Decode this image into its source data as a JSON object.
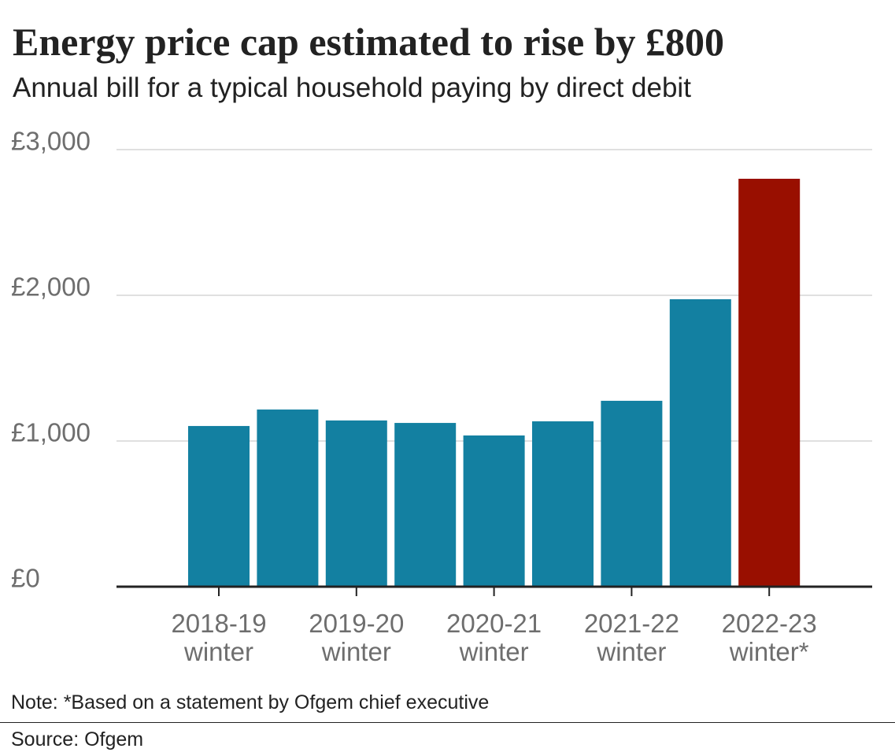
{
  "chart_data": {
    "type": "bar",
    "title": "Energy price cap estimated to rise by £800",
    "subtitle": "Annual bill for a typical household paying by direct debit",
    "categories": [
      "2018-19 winter",
      null,
      "2019-20 winter",
      null,
      "2020-21 winter",
      null,
      "2021-22 winter",
      null,
      "2022-23 winter*"
    ],
    "values": [
      1103,
      1216,
      1141,
      1124,
      1038,
      1135,
      1276,
      1973,
      2800
    ],
    "colors": [
      "#1380a1",
      "#1380a1",
      "#1380a1",
      "#1380a1",
      "#1380a1",
      "#1380a1",
      "#1380a1",
      "#1380a1",
      "#990f00"
    ],
    "ylim": [
      0,
      3000
    ],
    "yticks": [
      {
        "value": 0,
        "label": "£0"
      },
      {
        "value": 1000,
        "label": "£1,000"
      },
      {
        "value": 2000,
        "label": "£2,000"
      },
      {
        "value": 3000,
        "label": "£3,000"
      }
    ],
    "grid": true,
    "note": "Note: *Based on a statement by Ofgem chief executive",
    "source": "Source: Ofgem"
  }
}
